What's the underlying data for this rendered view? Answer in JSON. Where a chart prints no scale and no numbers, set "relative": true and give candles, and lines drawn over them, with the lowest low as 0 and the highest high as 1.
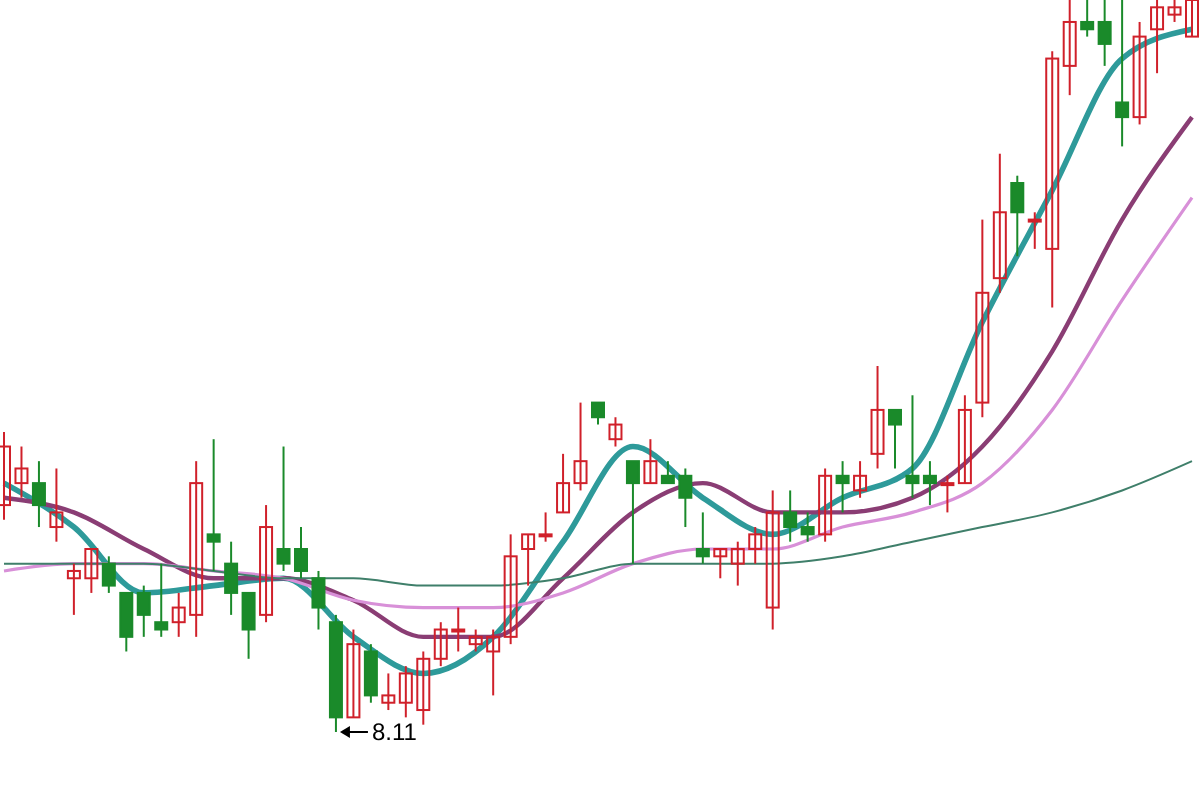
{
  "chart_data": {
    "type": "candlestick",
    "relative": true,
    "categories": [
      null,
      null,
      null,
      null,
      null,
      null,
      null,
      null,
      null,
      null,
      null,
      null,
      null,
      null,
      null,
      null,
      null,
      null,
      null,
      null,
      null,
      null,
      null,
      null,
      null,
      null,
      null,
      null,
      null,
      null,
      null,
      null,
      null,
      null,
      null,
      null,
      null,
      null,
      null,
      null,
      null,
      null,
      null,
      null,
      null,
      null,
      null,
      null,
      null,
      null,
      null,
      null,
      null,
      null,
      null,
      null,
      null,
      null,
      null,
      null,
      null,
      null,
      null,
      null,
      null,
      null,
      null,
      null,
      null
    ],
    "ohlc": [
      [
        0.31,
        0.41,
        0.29,
        0.39
      ],
      [
        0.34,
        0.39,
        0.32,
        0.36
      ],
      [
        0.34,
        0.37,
        0.28,
        0.31
      ],
      [
        0.28,
        0.36,
        0.26,
        0.3
      ],
      [
        0.21,
        0.23,
        0.16,
        0.22
      ],
      [
        0.21,
        0.25,
        0.19,
        0.25
      ],
      [
        0.23,
        0.24,
        0.19,
        0.2
      ],
      [
        0.19,
        0.19,
        0.11,
        0.13
      ],
      [
        0.19,
        0.2,
        0.13,
        0.16
      ],
      [
        0.15,
        0.23,
        0.13,
        0.14
      ],
      [
        0.15,
        0.19,
        0.13,
        0.17
      ],
      [
        0.16,
        0.37,
        0.13,
        0.34
      ],
      [
        0.27,
        0.4,
        0.22,
        0.26
      ],
      [
        0.23,
        0.26,
        0.16,
        0.19
      ],
      [
        0.19,
        0.19,
        0.1,
        0.14
      ],
      [
        0.16,
        0.31,
        0.15,
        0.28
      ],
      [
        0.25,
        0.39,
        0.22,
        0.23
      ],
      [
        0.25,
        0.28,
        0.21,
        0.22
      ],
      [
        0.21,
        0.22,
        0.14,
        0.17
      ],
      [
        0.15,
        0.16,
        0,
        0.02
      ],
      [
        0.02,
        0.14,
        0.02,
        0.12
      ],
      [
        0.11,
        0.12,
        0.04,
        0.05
      ],
      [
        0.04,
        0.08,
        0.03,
        0.05
      ],
      [
        0.04,
        0.09,
        0.02,
        0.08
      ],
      [
        0.03,
        0.11,
        0.01,
        0.1
      ],
      [
        0.1,
        0.15,
        0.09,
        0.14
      ],
      [
        0.14,
        0.17,
        0.11,
        0.14
      ],
      [
        0.12,
        0.14,
        0.11,
        0.13
      ],
      [
        0.11,
        0.14,
        0.05,
        0.13
      ],
      [
        0.13,
        0.27,
        0.12,
        0.24
      ],
      [
        0.25,
        0.27,
        0.2,
        0.27
      ],
      [
        0.27,
        0.3,
        0.26,
        0.27
      ],
      [
        0.3,
        0.38,
        0.3,
        0.34
      ],
      [
        0.34,
        0.45,
        0.33,
        0.37
      ],
      [
        0.45,
        0.45,
        0.42,
        0.43
      ],
      [
        0.4,
        0.43,
        0.39,
        0.42
      ],
      [
        0.37,
        0.37,
        0.23,
        0.34
      ],
      [
        0.34,
        0.4,
        0.34,
        0.37
      ],
      [
        0.35,
        0.37,
        0.34,
        0.34
      ],
      [
        0.35,
        0.36,
        0.28,
        0.32
      ],
      [
        0.25,
        0.3,
        0.23,
        0.24
      ],
      [
        0.24,
        0.25,
        0.21,
        0.25
      ],
      [
        0.23,
        0.26,
        0.2,
        0.25
      ],
      [
        0.25,
        0.28,
        0.23,
        0.27
      ],
      [
        0.17,
        0.33,
        0.14,
        0.3
      ],
      [
        0.3,
        0.33,
        0.26,
        0.28
      ],
      [
        0.28,
        0.3,
        0.26,
        0.27
      ],
      [
        0.27,
        0.36,
        0.26,
        0.35
      ],
      [
        0.35,
        0.37,
        0.3,
        0.34
      ],
      [
        0.33,
        0.37,
        0.32,
        0.35
      ],
      [
        0.38,
        0.5,
        0.36,
        0.44
      ],
      [
        0.44,
        0.44,
        0.36,
        0.42
      ],
      [
        0.35,
        0.46,
        0.32,
        0.34
      ],
      [
        0.35,
        0.37,
        0.31,
        0.34
      ],
      [
        0.34,
        0.35,
        0.3,
        0.34
      ],
      [
        0.34,
        0.46,
        0.34,
        0.44
      ],
      [
        0.45,
        0.7,
        0.43,
        0.6
      ],
      [
        0.62,
        0.79,
        0.6,
        0.71
      ],
      [
        0.75,
        0.76,
        0.65,
        0.71
      ],
      [
        0.7,
        0.71,
        0.66,
        0.7
      ],
      [
        0.66,
        0.93,
        0.58,
        0.92
      ],
      [
        0.91,
        1,
        0.87,
        0.97
      ],
      [
        0.97,
        1,
        0.95,
        0.96
      ],
      [
        0.97,
        1,
        0.91,
        0.94
      ],
      [
        0.86,
        1,
        0.8,
        0.84
      ],
      [
        0.84,
        0.97,
        0.83,
        0.95
      ],
      [
        0.96,
        1,
        0.9,
        0.99
      ],
      [
        0.98,
        1,
        0.97,
        0.99
      ],
      [
        0.95,
        1,
        0.95,
        1
      ]
    ],
    "series": [
      {
        "type": "line",
        "color": "#2e9a9a",
        "values": [
          0.34,
          null,
          null,
          null,
          0.28,
          null,
          null,
          null,
          0.19,
          null,
          null,
          null,
          0.2,
          null,
          null,
          null,
          0.21,
          null,
          null,
          null,
          0.13,
          null,
          null,
          null,
          0.08,
          null,
          null,
          null,
          0.13,
          null,
          null,
          null,
          0.26,
          null,
          null,
          null,
          0.39,
          null,
          null,
          null,
          0.32,
          null,
          null,
          null,
          0.27,
          null,
          null,
          null,
          0.32,
          null,
          null,
          null,
          0.36,
          null,
          null,
          null,
          0.56,
          null,
          null,
          null,
          0.74,
          null,
          null,
          null,
          0.92,
          null,
          null,
          null,
          0.96
        ]
      },
      {
        "type": "line",
        "color": "#8a3d74",
        "values": [
          0.32,
          null,
          null,
          null,
          0.3,
          null,
          null,
          null,
          0.25,
          null,
          null,
          null,
          0.21,
          null,
          null,
          null,
          0.21,
          null,
          null,
          null,
          0.18,
          null,
          null,
          null,
          0.13,
          null,
          null,
          null,
          0.13,
          null,
          null,
          null,
          0.21,
          null,
          null,
          null,
          0.3,
          null,
          null,
          null,
          0.34,
          null,
          null,
          null,
          0.3,
          null,
          null,
          null,
          0.3,
          null,
          null,
          null,
          0.32,
          null,
          null,
          null,
          0.39,
          null,
          null,
          null,
          0.52,
          null,
          null,
          null,
          0.7,
          null,
          null,
          null,
          0.84
        ]
      },
      {
        "type": "line",
        "color": "#d890d8",
        "values": [
          0.22,
          null,
          null,
          null,
          0.23,
          null,
          null,
          null,
          0.23,
          null,
          null,
          null,
          0.22,
          null,
          null,
          null,
          0.21,
          null,
          null,
          null,
          0.18,
          null,
          null,
          null,
          0.17,
          null,
          null,
          null,
          0.17,
          null,
          null,
          null,
          0.19,
          null,
          null,
          null,
          0.23,
          null,
          null,
          null,
          0.25,
          null,
          null,
          null,
          0.25,
          null,
          null,
          null,
          0.28,
          null,
          null,
          null,
          0.3,
          null,
          null,
          null,
          0.34,
          null,
          null,
          null,
          0.44,
          null,
          null,
          null,
          0.59,
          null,
          null,
          null,
          0.73
        ]
      },
      {
        "type": "line",
        "color": "#3f7f6a",
        "values": [
          0.23,
          null,
          null,
          null,
          0.23,
          null,
          null,
          null,
          0.23,
          null,
          null,
          null,
          0.22,
          null,
          null,
          null,
          0.21,
          null,
          null,
          null,
          0.21,
          null,
          null,
          null,
          0.2,
          null,
          null,
          null,
          0.2,
          null,
          null,
          null,
          0.21,
          null,
          null,
          null,
          0.23,
          null,
          null,
          null,
          0.23,
          null,
          null,
          null,
          0.23,
          null,
          null,
          null,
          0.24,
          null,
          null,
          null,
          0.26,
          null,
          null,
          null,
          0.28,
          null,
          null,
          null,
          0.3,
          null,
          null,
          null,
          0.33,
          null,
          null,
          null,
          0.37
        ]
      }
    ],
    "annotations": [
      "8.11"
    ]
  }
}
